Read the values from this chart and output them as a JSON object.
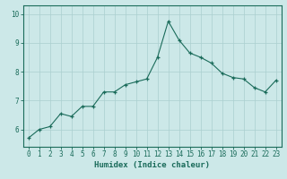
{
  "x": [
    0,
    1,
    2,
    3,
    4,
    5,
    6,
    7,
    8,
    9,
    10,
    11,
    12,
    13,
    14,
    15,
    16,
    17,
    18,
    19,
    20,
    21,
    22,
    23
  ],
  "y": [
    5.7,
    6.0,
    6.1,
    6.55,
    6.45,
    6.8,
    6.8,
    7.3,
    7.3,
    7.55,
    7.65,
    7.75,
    8.5,
    9.75,
    9.1,
    8.65,
    8.5,
    8.3,
    7.95,
    7.8,
    7.75,
    7.45,
    7.3,
    7.7
  ],
  "xlabel": "Humidex (Indice chaleur)",
  "xlim": [
    -0.5,
    23.5
  ],
  "ylim": [
    5.4,
    10.3
  ],
  "yticks": [
    6,
    7,
    8,
    9,
    10
  ],
  "xticks": [
    0,
    1,
    2,
    3,
    4,
    5,
    6,
    7,
    8,
    9,
    10,
    11,
    12,
    13,
    14,
    15,
    16,
    17,
    18,
    19,
    20,
    21,
    22,
    23
  ],
  "bg_color": "#cce8e8",
  "line_color": "#1a6b5a",
  "grid_color": "#aacfcf",
  "label_fontsize": 6.5,
  "tick_fontsize": 5.5
}
